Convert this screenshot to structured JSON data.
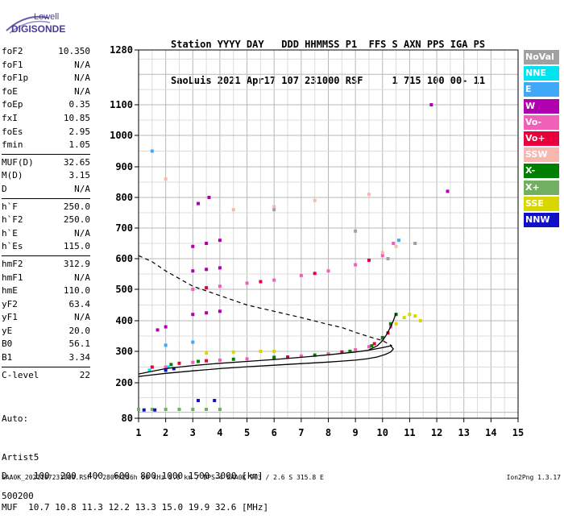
{
  "logo": {
    "line1": "Lowell",
    "line2": "DIGISONDE"
  },
  "header": {
    "line1": "Station YYYY DAY   DDD HHMMSS P1  FFS S AXN PPS IGA PS",
    "line2": "SaoLuis 2021 Apr17 107 231000 RSF     1 715 100 00- 11"
  },
  "params": {
    "group1": [
      {
        "k": "foF2",
        "v": "10.350"
      },
      {
        "k": "foF1",
        "v": "N/A"
      },
      {
        "k": "foF1p",
        "v": "N/A"
      },
      {
        "k": "foE",
        "v": "N/A"
      },
      {
        "k": "foEp",
        "v": "0.35"
      },
      {
        "k": "fxI",
        "v": "10.85"
      },
      {
        "k": "foEs",
        "v": "2.95"
      },
      {
        "k": "fmin",
        "v": "1.05"
      }
    ],
    "group2": [
      {
        "k": "MUF(D)",
        "v": "32.65"
      },
      {
        "k": "M(D)",
        "v": "3.15"
      },
      {
        "k": "D",
        "v": "N/A"
      }
    ],
    "group3": [
      {
        "k": "h`F",
        "v": "250.0"
      },
      {
        "k": "h`F2",
        "v": "250.0"
      },
      {
        "k": "h`E",
        "v": "N/A"
      },
      {
        "k": "h`Es",
        "v": "115.0"
      }
    ],
    "group4": [
      {
        "k": "hmF2",
        "v": "312.9"
      },
      {
        "k": "hmF1",
        "v": "N/A"
      },
      {
        "k": "hmE",
        "v": "110.0"
      },
      {
        "k": "yF2",
        "v": "63.4"
      },
      {
        "k": "yF1",
        "v": "N/A"
      },
      {
        "k": "yE",
        "v": "20.0"
      },
      {
        "k": "B0",
        "v": "56.1"
      },
      {
        "k": "B1",
        "v": "3.34"
      }
    ],
    "group5": [
      {
        "k": "C-level",
        "v": "22"
      }
    ]
  },
  "extra": {
    "auto": "Auto:",
    "artist": "Artist5",
    "version": "500200"
  },
  "legend": [
    {
      "label": "NoVal",
      "color": "#a0a0a0"
    },
    {
      "label": "NNE",
      "color": "#00e4f0"
    },
    {
      "label": "E",
      "color": "#40a8f8"
    },
    {
      "label": "W",
      "color": "#b000b0"
    },
    {
      "label": "Vo-",
      "color": "#f060b8"
    },
    {
      "label": "Vo+",
      "color": "#e8003c"
    },
    {
      "label": "SSW",
      "color": "#f8b8b0"
    },
    {
      "label": "X-",
      "color": "#008000"
    },
    {
      "label": "X+",
      "color": "#70b060"
    },
    {
      "label": "SSE",
      "color": "#d8d800"
    },
    {
      "label": "NNW",
      "color": "#1010c8"
    }
  ],
  "muf_table": {
    "d_line": "D     100  200  400  600  800 1000 1500 3000 [km]",
    "muf_line": "MUF  10.7 10.8 11.3 12.2 13.3 15.0 19.9 32.6 [MHz]"
  },
  "footer": {
    "text": "SAA0K_2021107231000.RSF / 280fx256h 50 kHz 5.0 km / DPS-4 SAA0K 903 / 2.6 S 315.8 E",
    "version": "Ion2Png 1.3.17"
  },
  "chart_data": {
    "type": "scatter",
    "title": "",
    "xlabel": "",
    "ylabel": "",
    "xlim": [
      1,
      15
    ],
    "ylim": [
      80,
      1280
    ],
    "xticks": [
      1,
      2,
      3,
      4,
      5,
      6,
      7,
      8,
      9,
      10,
      11,
      12,
      13,
      14,
      15
    ],
    "yticks": [
      80,
      200,
      300,
      400,
      500,
      600,
      700,
      800,
      900,
      1000,
      1100,
      1280
    ],
    "grid": true,
    "series": [
      {
        "name": "Vo-",
        "color": "#f060b8",
        "points": [
          [
            2.0,
            250
          ],
          [
            3.0,
            265
          ],
          [
            4.0,
            272
          ],
          [
            5.0,
            276
          ],
          [
            6.0,
            280
          ],
          [
            7.0,
            285
          ],
          [
            8.0,
            292
          ],
          [
            9.0,
            305
          ],
          [
            9.5,
            315
          ],
          [
            10.0,
            340
          ],
          [
            10.3,
            380
          ],
          [
            3.0,
            500
          ],
          [
            4.0,
            510
          ],
          [
            5.0,
            520
          ],
          [
            6.0,
            530
          ],
          [
            7.0,
            545
          ],
          [
            8.0,
            560
          ],
          [
            9.0,
            580
          ],
          [
            10.0,
            610
          ],
          [
            10.4,
            650
          ]
        ]
      },
      {
        "name": "Vo+",
        "color": "#e8003c",
        "points": [
          [
            1.5,
            250
          ],
          [
            2.5,
            262
          ],
          [
            3.5,
            270
          ],
          [
            6.5,
            282
          ],
          [
            8.5,
            298
          ],
          [
            9.7,
            325
          ],
          [
            10.2,
            360
          ],
          [
            3.5,
            505
          ],
          [
            5.5,
            525
          ],
          [
            7.5,
            552
          ],
          [
            9.5,
            595
          ]
        ]
      },
      {
        "name": "X-",
        "color": "#008000",
        "points": [
          [
            2.2,
            258
          ],
          [
            3.2,
            268
          ],
          [
            4.5,
            275
          ],
          [
            6.0,
            281
          ],
          [
            7.5,
            288
          ],
          [
            8.8,
            300
          ],
          [
            9.6,
            318
          ],
          [
            10.0,
            345
          ],
          [
            10.3,
            390
          ],
          [
            10.5,
            420
          ]
        ]
      },
      {
        "name": "W",
        "color": "#b000b0",
        "points": [
          [
            3.0,
            560
          ],
          [
            3.5,
            565
          ],
          [
            4.0,
            570
          ],
          [
            3.0,
            420
          ],
          [
            3.5,
            425
          ],
          [
            4.0,
            430
          ],
          [
            3.0,
            640
          ],
          [
            3.5,
            650
          ],
          [
            4.0,
            660
          ],
          [
            3.2,
            780
          ],
          [
            3.6,
            800
          ],
          [
            1.7,
            370
          ],
          [
            2.0,
            380
          ],
          [
            11.8,
            1100
          ],
          [
            12.4,
            820
          ]
        ]
      },
      {
        "name": "SSW",
        "color": "#f8b8b0",
        "points": [
          [
            4.5,
            760
          ],
          [
            6.0,
            770
          ],
          [
            7.5,
            790
          ],
          [
            9.5,
            810
          ],
          [
            10.0,
            620
          ],
          [
            10.5,
            640
          ],
          [
            2.0,
            860
          ]
        ]
      },
      {
        "name": "X+",
        "color": "#70b060",
        "points": [
          [
            1.0,
            110
          ],
          [
            1.5,
            110
          ],
          [
            2.0,
            110
          ],
          [
            2.5,
            110
          ],
          [
            3.0,
            110
          ],
          [
            3.5,
            110
          ],
          [
            4.0,
            110
          ]
        ]
      },
      {
        "name": "SSE",
        "color": "#d8d800",
        "points": [
          [
            3.5,
            295
          ],
          [
            4.5,
            298
          ],
          [
            5.5,
            300
          ],
          [
            6.0,
            300
          ],
          [
            10.5,
            390
          ],
          [
            10.8,
            410
          ],
          [
            11.0,
            420
          ],
          [
            11.2,
            415
          ],
          [
            11.4,
            400
          ]
        ]
      },
      {
        "name": "NNW",
        "color": "#1010c8",
        "points": [
          [
            1.2,
            108
          ],
          [
            1.6,
            108
          ],
          [
            2.0,
            240
          ],
          [
            2.3,
            245
          ],
          [
            3.2,
            140
          ],
          [
            3.8,
            140
          ]
        ]
      },
      {
        "name": "E",
        "color": "#40a8f8",
        "points": [
          [
            1.5,
            950
          ],
          [
            10.6,
            660
          ],
          [
            2.0,
            320
          ],
          [
            3.0,
            330
          ]
        ]
      },
      {
        "name": "NNE",
        "color": "#00e4f0",
        "points": [
          [
            1.4,
            240
          ],
          [
            2.1,
            250
          ]
        ]
      },
      {
        "name": "NoVal",
        "color": "#a0a0a0",
        "points": [
          [
            6.0,
            760
          ],
          [
            9.0,
            690
          ],
          [
            10.2,
            600
          ],
          [
            11.2,
            650
          ]
        ]
      }
    ],
    "profile_curve": [
      [
        1.0,
        228
      ],
      [
        2.0,
        245
      ],
      [
        3.0,
        255
      ],
      [
        4.0,
        262
      ],
      [
        5.0,
        268
      ],
      [
        6.0,
        274
      ],
      [
        7.0,
        281
      ],
      [
        8.0,
        289
      ],
      [
        9.0,
        298
      ],
      [
        9.5,
        304
      ],
      [
        10.0,
        312
      ],
      [
        10.3,
        318
      ],
      [
        10.4,
        308
      ],
      [
        10.3,
        298
      ],
      [
        10.1,
        290
      ],
      [
        9.8,
        282
      ],
      [
        9.4,
        276
      ],
      [
        9.0,
        272
      ],
      [
        8.5,
        269
      ],
      [
        8.0,
        266
      ],
      [
        7.0,
        261
      ],
      [
        6.0,
        256
      ],
      [
        5.0,
        251
      ],
      [
        4.0,
        245
      ],
      [
        3.0,
        238
      ],
      [
        2.0,
        230
      ],
      [
        1.2,
        222
      ],
      [
        1.0,
        220
      ]
    ],
    "trace_curve": [
      [
        9.5,
        305
      ],
      [
        9.8,
        318
      ],
      [
        10.0,
        335
      ],
      [
        10.15,
        355
      ],
      [
        10.3,
        380
      ],
      [
        10.4,
        400
      ],
      [
        10.5,
        425
      ]
    ],
    "dashed_curve": [
      [
        1.0,
        610
      ],
      [
        1.5,
        590
      ],
      [
        2.0,
        560
      ],
      [
        2.5,
        535
      ],
      [
        3.0,
        510
      ],
      [
        4.0,
        480
      ],
      [
        5.0,
        450
      ],
      [
        6.0,
        430
      ],
      [
        7.0,
        410
      ],
      [
        8.0,
        388
      ],
      [
        8.5,
        378
      ],
      [
        9.0,
        362
      ],
      [
        9.5,
        348
      ],
      [
        10.0,
        335
      ],
      [
        10.35,
        318
      ]
    ]
  }
}
